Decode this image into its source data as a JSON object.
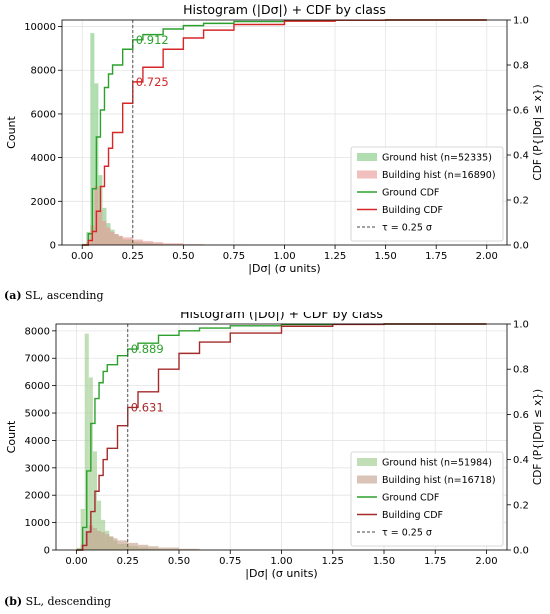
{
  "chart_data": [
    {
      "type": "histogram+cdf",
      "title": "Histogram (|Dσ|) + CDF by class",
      "xlabel": "|Dσ| (σ units)",
      "ylabel": "Count",
      "ylabel_right": "CDF  (P{|Dσ| ≤ x})",
      "xlim": [
        -0.1,
        2.1
      ],
      "ylim": [
        0,
        10300
      ],
      "ylim_right": [
        0,
        1
      ],
      "xticks": [
        0.0,
        0.25,
        0.5,
        0.75,
        1.0,
        1.25,
        1.5,
        1.75,
        2.0
      ],
      "xtick_labels": [
        "0.00",
        "0.25",
        "0.50",
        "0.75",
        "1.00",
        "1.25",
        "1.50",
        "1.75",
        "2.00"
      ],
      "yticks": [
        0,
        2000,
        4000,
        6000,
        8000,
        10000
      ],
      "ytick_labels": [
        "0",
        "2000",
        "4000",
        "6000",
        "8000",
        "10000"
      ],
      "yticks_right": [
        0,
        0.2,
        0.4,
        0.6,
        0.8,
        1.0
      ],
      "ytick_labels_right": [
        "0.0",
        "0.2",
        "0.4",
        "0.6",
        "0.8",
        "1.0"
      ],
      "grid": true,
      "legend_position": "lower-right",
      "tau": 0.25,
      "bin_edges": [
        0.0,
        0.02,
        0.04,
        0.06,
        0.08,
        0.1,
        0.12,
        0.14,
        0.16,
        0.18,
        0.2,
        0.25,
        0.3,
        0.35,
        0.4,
        0.5,
        0.6,
        0.8,
        1.0
      ],
      "series": [
        {
          "name": "Ground hist (n=52335)",
          "kind": "hist",
          "color": "#7fc97f",
          "counts": [
            60,
            600,
            9700,
            7400,
            3200,
            1700,
            1000,
            700,
            500,
            400,
            250,
            150,
            100,
            60,
            30,
            15,
            5,
            0
          ]
        },
        {
          "name": "Building hist (n=16890)",
          "kind": "hist",
          "color": "#e99795",
          "counts": [
            20,
            120,
            900,
            2700,
            1600,
            1100,
            800,
            600,
            500,
            420,
            350,
            250,
            180,
            130,
            80,
            40,
            15,
            0
          ]
        },
        {
          "name": "Ground CDF",
          "kind": "cdf",
          "color": "#2ca02c",
          "x": [
            0.0,
            0.03,
            0.05,
            0.07,
            0.09,
            0.11,
            0.13,
            0.15,
            0.2,
            0.25,
            0.3,
            0.4,
            0.5,
            0.6,
            0.75,
            1.0,
            1.25,
            1.5,
            2.0
          ],
          "y": [
            0.0,
            0.05,
            0.25,
            0.48,
            0.6,
            0.7,
            0.76,
            0.8,
            0.87,
            0.912,
            0.935,
            0.96,
            0.975,
            0.985,
            0.993,
            0.998,
            0.999,
            1.0,
            1.0
          ]
        },
        {
          "name": "Building CDF",
          "kind": "cdf",
          "color": "#d62728",
          "x": [
            0.0,
            0.03,
            0.05,
            0.07,
            0.09,
            0.11,
            0.13,
            0.15,
            0.2,
            0.25,
            0.3,
            0.4,
            0.5,
            0.6,
            0.75,
            1.0,
            1.25,
            1.5,
            2.0
          ],
          "y": [
            0.0,
            0.02,
            0.06,
            0.15,
            0.26,
            0.35,
            0.43,
            0.5,
            0.63,
            0.725,
            0.79,
            0.87,
            0.92,
            0.955,
            0.98,
            0.995,
            0.999,
            1.0,
            1.0
          ]
        },
        {
          "name": "τ = 0.25 σ",
          "kind": "vline",
          "color": "#555555",
          "x": 0.25
        }
      ],
      "annotations": [
        {
          "text": "0.912",
          "x": 0.25,
          "y": 0.912,
          "color": "#2ca02c"
        },
        {
          "text": "0.725",
          "x": 0.25,
          "y": 0.725,
          "color": "#d62728"
        }
      ]
    },
    {
      "type": "histogram+cdf",
      "title": "Histogram (|Dσ|) + CDF by class",
      "xlabel": "|Dσ| (σ units)",
      "ylabel": "Count",
      "ylabel_right": "CDF  (P{|Dσ| ≤ x})",
      "xlim": [
        -0.1,
        2.1
      ],
      "ylim": [
        0,
        8250
      ],
      "ylim_right": [
        0,
        1
      ],
      "xticks": [
        0.0,
        0.25,
        0.5,
        0.75,
        1.0,
        1.25,
        1.5,
        1.75,
        2.0
      ],
      "xtick_labels": [
        "0.00",
        "0.25",
        "0.50",
        "0.75",
        "1.00",
        "1.25",
        "1.50",
        "1.75",
        "2.00"
      ],
      "yticks": [
        0,
        1000,
        2000,
        3000,
        4000,
        5000,
        6000,
        7000,
        8000
      ],
      "ytick_labels": [
        "0",
        "1000",
        "2000",
        "3000",
        "4000",
        "5000",
        "6000",
        "7000",
        "8000"
      ],
      "yticks_right": [
        0,
        0.2,
        0.4,
        0.6,
        0.8,
        1.0
      ],
      "ytick_labels_right": [
        "0.0",
        "0.2",
        "0.4",
        "0.6",
        "0.8",
        "1.0"
      ],
      "grid": true,
      "legend_position": "lower-right",
      "tau": 0.25,
      "bin_edges": [
        0.0,
        0.02,
        0.04,
        0.06,
        0.08,
        0.1,
        0.12,
        0.14,
        0.16,
        0.18,
        0.2,
        0.25,
        0.3,
        0.35,
        0.4,
        0.5,
        0.6,
        0.8,
        1.0
      ],
      "series": [
        {
          "name": "Ground hist (n=51984)",
          "kind": "hist",
          "color": "#9dc98a",
          "counts": [
            80,
            1500,
            7900,
            6300,
            3600,
            1800,
            1100,
            700,
            480,
            350,
            220,
            140,
            90,
            55,
            30,
            15,
            5,
            0
          ]
        },
        {
          "name": "Building hist (n=16718)",
          "kind": "hist",
          "color": "#c4a08a",
          "counts": [
            30,
            200,
            700,
            900,
            800,
            700,
            650,
            580,
            500,
            430,
            350,
            260,
            190,
            140,
            90,
            45,
            15,
            0
          ]
        },
        {
          "name": "Ground CDF",
          "kind": "cdf",
          "color": "#2ca02c",
          "x": [
            0.0,
            0.03,
            0.05,
            0.07,
            0.09,
            0.11,
            0.13,
            0.15,
            0.2,
            0.25,
            0.3,
            0.4,
            0.5,
            0.6,
            0.75,
            1.0,
            1.25,
            1.5,
            2.0
          ],
          "y": [
            0.0,
            0.1,
            0.35,
            0.56,
            0.67,
            0.74,
            0.79,
            0.82,
            0.86,
            0.889,
            0.915,
            0.95,
            0.97,
            0.982,
            0.992,
            0.998,
            0.999,
            1.0,
            1.0
          ]
        },
        {
          "name": "Building CDF",
          "kind": "cdf",
          "color": "#a52a2a",
          "x": [
            0.0,
            0.03,
            0.05,
            0.07,
            0.09,
            0.11,
            0.13,
            0.15,
            0.2,
            0.25,
            0.3,
            0.4,
            0.5,
            0.6,
            0.75,
            1.0,
            1.25,
            1.5,
            2.0
          ],
          "y": [
            0.0,
            0.02,
            0.08,
            0.17,
            0.26,
            0.33,
            0.4,
            0.45,
            0.55,
            0.631,
            0.7,
            0.8,
            0.87,
            0.92,
            0.96,
            0.99,
            0.998,
            1.0,
            1.0
          ]
        },
        {
          "name": "τ = 0.25 σ",
          "kind": "vline",
          "color": "#555555",
          "x": 0.25
        }
      ],
      "annotations": [
        {
          "text": "0.889",
          "x": 0.25,
          "y": 0.889,
          "color": "#2ca02c"
        },
        {
          "text": "0.631",
          "x": 0.25,
          "y": 0.631,
          "color": "#a52a2a"
        }
      ]
    }
  ],
  "captions": [
    {
      "label": "(a)",
      "text": " SL, ascending"
    },
    {
      "label": "(b)",
      "text": " SL, descending"
    }
  ]
}
